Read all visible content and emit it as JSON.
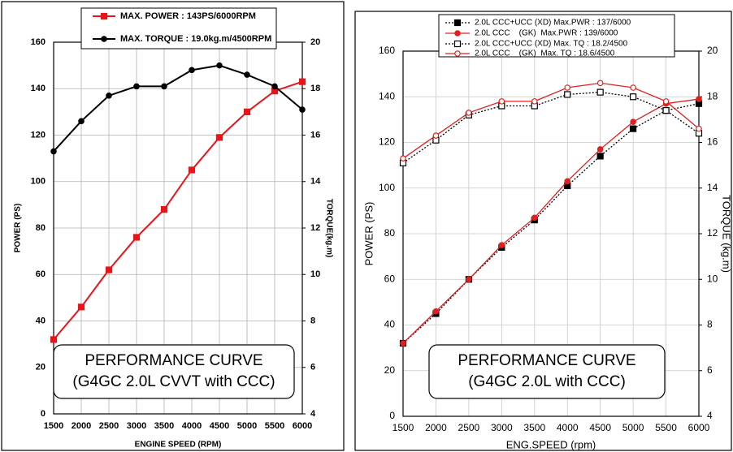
{
  "chart_data": [
    {
      "type": "line",
      "title": "PERFORMANCE CURVE",
      "subtitle": "(G4GC 2.0L CVVT with CCC)",
      "x_label": "ENGINE SPEED (RPM)",
      "y_label": "POWER (PS)",
      "y2_label": "TORQUE(kg.m)",
      "x": [
        1500,
        2000,
        2500,
        3000,
        3500,
        4000,
        4500,
        5000,
        5500,
        6000
      ],
      "xlim": [
        1500,
        6000
      ],
      "xticks": [
        1500,
        2000,
        2500,
        3000,
        3500,
        4000,
        4500,
        5000,
        5500,
        6000
      ],
      "ylim": [
        0,
        160
      ],
      "yticks": [
        0,
        20,
        40,
        60,
        80,
        100,
        120,
        140,
        160
      ],
      "y2lim": [
        4,
        20
      ],
      "y2ticks": [
        4,
        6,
        8,
        10,
        12,
        14,
        16,
        18,
        20
      ],
      "grid": true,
      "series": [
        {
          "name": "MAX. POWER : 143PS/6000RPM",
          "color": "#e8141a",
          "marker": "square",
          "line_style": "solid",
          "values": [
            32,
            46,
            62,
            76,
            88,
            105,
            119,
            130,
            139,
            143
          ]
        },
        {
          "name": "MAX. TORQUE : 19.0kg.m/4500RPM",
          "color": "#000000",
          "marker": "circle",
          "line_style": "solid",
          "axis": "y2",
          "values": [
            15.3,
            16.6,
            17.7,
            18.1,
            18.1,
            18.8,
            19.0,
            18.6,
            18.1,
            17.1
          ]
        }
      ]
    },
    {
      "type": "line",
      "title": "PERFORMANCE CURVE",
      "subtitle": "(G4GC 2.0L with CCC)",
      "x_label": "ENG.SPEED (rpm)",
      "y_label": "POWER (PS)",
      "y2_label": "TORQUE (kg.m)",
      "x": [
        1500,
        2000,
        2500,
        3000,
        3500,
        4000,
        4500,
        5000,
        5500,
        6000
      ],
      "xlim": [
        1500,
        6000
      ],
      "xticks": [
        1500,
        2000,
        2500,
        3000,
        3500,
        4000,
        4500,
        5000,
        5500,
        6000
      ],
      "ylim": [
        0,
        160
      ],
      "yticks": [
        0,
        20,
        40,
        60,
        80,
        100,
        120,
        140,
        160
      ],
      "y2lim": [
        4,
        20
      ],
      "y2ticks": [
        4,
        6,
        8,
        10,
        12,
        14,
        16,
        18,
        20
      ],
      "grid": true,
      "series": [
        {
          "name": "2.0L CCC+UCC (XD) Max.PWR : 137/6000",
          "color": "#000000",
          "marker": "square",
          "line_style": "dotted",
          "values": [
            32,
            45,
            60,
            74,
            86,
            101,
            114,
            126,
            134,
            137
          ]
        },
        {
          "name": "2.0L CCC    (GK)  Max.PWR : 139/6000",
          "color": "#e02020",
          "marker": "circle",
          "line_style": "solid",
          "values": [
            32,
            46,
            60,
            75,
            87,
            103,
            117,
            129,
            137,
            139
          ]
        },
        {
          "name": "2.0L CCC+UCC (XD) Max. TQ : 18.2/4500",
          "color": "#000000",
          "marker": "square-open",
          "line_style": "dotted",
          "axis": "y2",
          "values": [
            15.1,
            16.1,
            17.2,
            17.6,
            17.6,
            18.1,
            18.2,
            18.0,
            17.4,
            16.4
          ]
        },
        {
          "name": "2.0L CCC    (GK)  Max. TQ : 18.6/4500",
          "color": "#e02020",
          "marker": "circle-open",
          "line_style": "solid",
          "axis": "y2",
          "values": [
            15.3,
            16.3,
            17.3,
            17.8,
            17.8,
            18.4,
            18.6,
            18.4,
            17.8,
            16.6
          ]
        }
      ]
    }
  ]
}
